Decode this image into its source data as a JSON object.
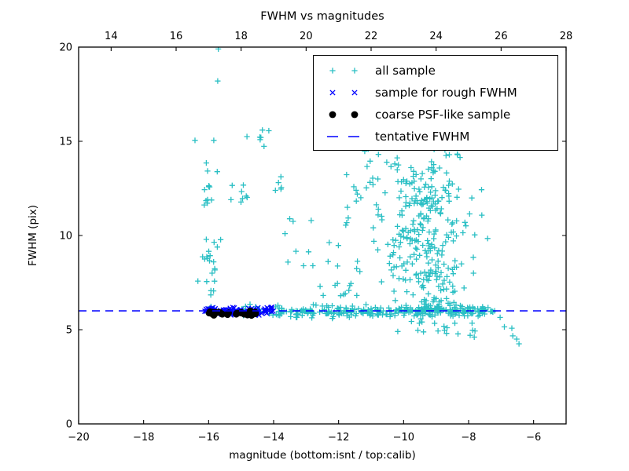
{
  "window": {
    "background": "#ffffff"
  },
  "chart_data": {
    "type": "scatter",
    "title": "FWHM vs magnitudes",
    "xlabel": "magnitude (bottom:isnt / top:calib)",
    "ylabel": "FWHM (pix)",
    "grid": false,
    "legend_position": "upper right",
    "x_axis_bottom": {
      "lim": [
        -20,
        -5
      ],
      "ticks": [
        -20,
        -18,
        -16,
        -14,
        -12,
        -10,
        -8,
        -6
      ]
    },
    "x_axis_top": {
      "lim": [
        13,
        28
      ],
      "ticks": [
        14,
        16,
        18,
        20,
        22,
        24,
        26,
        28
      ]
    },
    "y_axis": {
      "lim": [
        0,
        20
      ],
      "ticks": [
        0,
        5,
        10,
        15,
        20
      ]
    },
    "tentative_fwhm": 6.0,
    "series": [
      {
        "name": "all sample",
        "marker": "plus",
        "color": "#2abfc4",
        "points": [
          [
            -15.7,
            19.9
          ],
          [
            -15.72,
            18.2
          ],
          [
            -16.42,
            15.05
          ],
          [
            -15.84,
            15.05
          ],
          [
            -16.33,
            7.58
          ],
          [
            -13.4,
            10.75
          ],
          [
            -13.65,
            10.1
          ],
          [
            -7.85,
            8.0
          ],
          [
            -7.2,
            6.0
          ],
          [
            -7.03,
            5.65
          ],
          [
            -6.9,
            5.15
          ],
          [
            -6.67,
            5.08
          ],
          [
            -6.64,
            4.67
          ],
          [
            -6.52,
            4.5
          ],
          [
            -6.45,
            4.25
          ]
        ],
        "clusters": [
          {
            "n": 20,
            "x": {
              "mean": -15.92,
              "sd": 0.12,
              "min": -16.2,
              "max": -15.6
            },
            "y": {
              "min": 6.5,
              "max": 10.4
            }
          },
          {
            "n": 12,
            "x": {
              "mean": -15.95,
              "sd": 0.12,
              "min": -16.2,
              "max": -15.6
            },
            "y": {
              "min": 11.6,
              "max": 14.0
            }
          },
          {
            "n": 7,
            "x": {
              "min": -14.9,
              "max": -14.05
            },
            "y": {
              "min": 14.6,
              "max": 15.6
            }
          },
          {
            "n": 8,
            "x": {
              "min": -15.35,
              "max": -14.8
            },
            "y": {
              "min": 11.3,
              "max": 13.4
            }
          },
          {
            "n": 5,
            "x": {
              "mean": -13.82,
              "sd": 0.06
            },
            "y": {
              "min": 11.9,
              "max": 13.2
            }
          },
          {
            "n": 14,
            "x": {
              "min": -13.7,
              "max": -11.4
            },
            "y": {
              "min": 6.6,
              "max": 10.9
            }
          },
          {
            "n": 16,
            "x": {
              "min": -11.9,
              "max": -10.4
            },
            "y": {
              "min": 10.4,
              "max": 13.6
            }
          },
          {
            "n": 26,
            "x": {
              "min": -16.15,
              "max": -13.9
            },
            "y": {
              "mean": 6.0,
              "sd": 0.15
            }
          },
          {
            "n": 250,
            "x": {
              "min": -13.9,
              "max": -7.25
            },
            "y": {
              "mean": 5.95,
              "sd": 0.14
            }
          },
          {
            "n": 180,
            "x": {
              "mean": -9.25,
              "sd": 0.55,
              "min": -11.9,
              "max": -7.35
            },
            "y": {
              "funnel": [
                6.0,
                12.8
              ],
              "pow": 2.2
            }
          },
          {
            "n": 110,
            "x": {
              "mean": -9.5,
              "sd": 0.75,
              "min": -11.9,
              "max": -7.35
            },
            "y": {
              "min": 7.5,
              "max": 12.5
            }
          },
          {
            "n": 55,
            "x": {
              "mean": -9.6,
              "sd": 0.8,
              "min": -11.7,
              "max": -7.6
            },
            "y": {
              "min": 12.0,
              "max": 14.6
            }
          },
          {
            "n": 20,
            "x": {
              "min": -10.6,
              "max": -7.8
            },
            "y": {
              "min": 4.6,
              "max": 5.6
            }
          },
          {
            "n": 12,
            "x": {
              "min": -12.35,
              "max": -11.3
            },
            "y": {
              "min": 6.5,
              "max": 9.8
            }
          }
        ]
      },
      {
        "name": "sample for rough FWHM",
        "marker": "x",
        "color": "#0000ff",
        "points": [],
        "clusters": [
          {
            "n": 60,
            "x": {
              "min": -16.1,
              "max": -13.95
            },
            "y": {
              "mean": 6.02,
              "sd": 0.11
            }
          },
          {
            "n": 20,
            "x": {
              "min": -16.12,
              "max": -15.78
            },
            "y": {
              "mean": 6.05,
              "sd": 0.1
            }
          },
          {
            "n": 14,
            "x": {
              "min": -14.7,
              "max": -14.25
            },
            "y": {
              "mean": 6.0,
              "sd": 0.1
            }
          }
        ]
      },
      {
        "name": "coarse PSF-like sample",
        "marker": "dot",
        "color": "#000000",
        "points": [],
        "clusters": [
          {
            "n": 14,
            "x": {
              "min": -16.0,
              "max": -15.3
            },
            "y": {
              "mean": 5.88,
              "sd": 0.07
            }
          },
          {
            "n": 13,
            "x": {
              "min": -15.2,
              "max": -14.55
            },
            "y": {
              "mean": 5.86,
              "sd": 0.07
            }
          }
        ]
      },
      {
        "name": "tentative FWHM",
        "marker": "dashed-line",
        "color": "#0000ff",
        "y": 6.0
      }
    ]
  },
  "legend": {
    "items": [
      {
        "label": "all sample",
        "marker": "plus",
        "color": "#2abfc4"
      },
      {
        "label": "sample for rough FWHM",
        "marker": "x",
        "color": "#0000ff"
      },
      {
        "label": "coarse PSF-like sample",
        "marker": "dot",
        "color": "#000000"
      },
      {
        "label": "tentative FWHM",
        "marker": "dashed-line",
        "color": "#0000ff"
      }
    ]
  }
}
